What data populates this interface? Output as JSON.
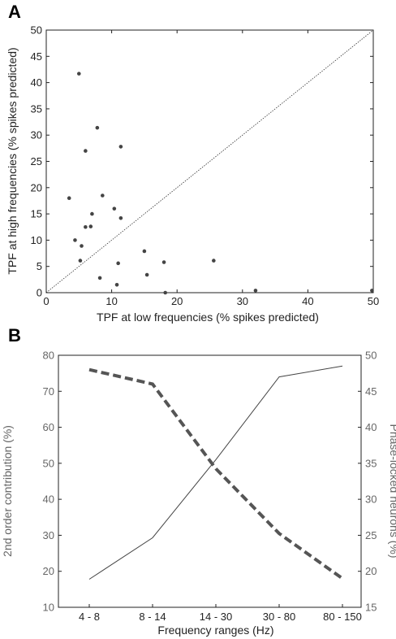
{
  "chart_data": [
    {
      "panel_label": "A",
      "type": "scatter",
      "xlabel": "TPF at low frequencies (% spikes predicted)",
      "ylabel": "TPF at high frequencies (% spikes predicted)",
      "xlim": [
        0,
        50
      ],
      "ylim": [
        0,
        50
      ],
      "xticks": [
        "0",
        "10",
        "20",
        "30",
        "40",
        "50"
      ],
      "yticks": [
        "0",
        "5",
        "10",
        "15",
        "20",
        "25",
        "30",
        "35",
        "40",
        "45",
        "50"
      ],
      "reference_line": "diagonal y = x (dotted)",
      "color": "#444444",
      "points": [
        {
          "x": 5.0,
          "y": 41.7
        },
        {
          "x": 7.8,
          "y": 31.4
        },
        {
          "x": 6.0,
          "y": 27.0
        },
        {
          "x": 11.4,
          "y": 27.8
        },
        {
          "x": 3.5,
          "y": 18.0
        },
        {
          "x": 8.6,
          "y": 18.5
        },
        {
          "x": 10.4,
          "y": 16.0
        },
        {
          "x": 7.0,
          "y": 15.0
        },
        {
          "x": 11.4,
          "y": 14.2
        },
        {
          "x": 6.0,
          "y": 12.5
        },
        {
          "x": 6.8,
          "y": 12.6
        },
        {
          "x": 4.4,
          "y": 10.0
        },
        {
          "x": 5.4,
          "y": 8.9
        },
        {
          "x": 5.2,
          "y": 6.1
        },
        {
          "x": 11.0,
          "y": 5.6
        },
        {
          "x": 15.0,
          "y": 7.9
        },
        {
          "x": 15.4,
          "y": 3.4
        },
        {
          "x": 18.0,
          "y": 5.8
        },
        {
          "x": 25.6,
          "y": 6.1
        },
        {
          "x": 8.2,
          "y": 2.8
        },
        {
          "x": 10.8,
          "y": 1.5
        },
        {
          "x": 18.2,
          "y": 0.0
        },
        {
          "x": 32.0,
          "y": 0.4
        },
        {
          "x": 49.8,
          "y": 0.4
        }
      ]
    },
    {
      "panel_label": "B",
      "type": "line",
      "xlabel": "Frequency ranges (Hz)",
      "ylabel_left": "2nd order contribution (%)",
      "ylabel_right": "Phase-locked neurons (%)",
      "categories": [
        "4 - 8",
        "8 - 14",
        "14 - 30",
        "30 - 80",
        "80 - 150"
      ],
      "ylim_left": [
        10,
        80
      ],
      "ylim_right": [
        15,
        50
      ],
      "yticks_left": [
        "10",
        "20",
        "30",
        "40",
        "50",
        "60",
        "70",
        "80"
      ],
      "yticks_right": [
        "15",
        "20",
        "25",
        "30",
        "35",
        "40",
        "45",
        "50"
      ],
      "series": [
        {
          "axis": "left",
          "style": "solid",
          "color": "#444444",
          "values": [
            17.8,
            29.3,
            51.0,
            74.0,
            77.0
          ]
        },
        {
          "axis": "left",
          "style": "dashed",
          "color": "#555555",
          "values": [
            76.0,
            72.0,
            48.5,
            30.5,
            18.0
          ]
        }
      ]
    }
  ]
}
